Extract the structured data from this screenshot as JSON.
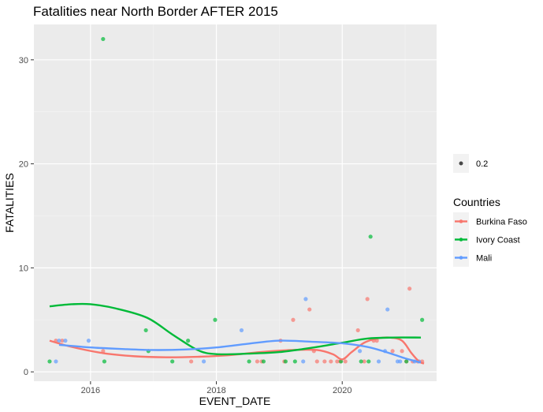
{
  "chart_data": {
    "type": "scatter",
    "title": "Fatalities near North Border AFTER 2015",
    "xlabel": "EVENT_DATE",
    "ylabel": "FATALITIES",
    "xlim": [
      2015.1,
      2021.5
    ],
    "ylim": [
      -0.9,
      33.4
    ],
    "x_ticks": [
      2016,
      2018,
      2020
    ],
    "y_ticks": [
      0,
      10,
      20,
      30
    ],
    "grid": true,
    "point_alpha": 0.2,
    "size_legend": {
      "label": "0.2"
    },
    "legend_title": "Countries",
    "legend_position": "right",
    "series": [
      {
        "name": "Burkina Faso",
        "color": "#F8766D",
        "points": [
          [
            2015.45,
            3
          ],
          [
            2015.55,
            3
          ],
          [
            2016.2,
            2
          ],
          [
            2017.6,
            1
          ],
          [
            2018.65,
            1
          ],
          [
            2018.72,
            1
          ],
          [
            2019.02,
            3
          ],
          [
            2019.08,
            1
          ],
          [
            2019.22,
            5
          ],
          [
            2019.48,
            6
          ],
          [
            2019.55,
            2
          ],
          [
            2019.6,
            1
          ],
          [
            2019.72,
            1
          ],
          [
            2019.82,
            1
          ],
          [
            2019.92,
            1
          ],
          [
            2019.97,
            1
          ],
          [
            2020.05,
            1
          ],
          [
            2020.25,
            4
          ],
          [
            2020.35,
            1
          ],
          [
            2020.4,
            7
          ],
          [
            2020.5,
            3
          ],
          [
            2020.55,
            3
          ],
          [
            2020.8,
            2
          ],
          [
            2020.95,
            2
          ],
          [
            2021.02,
            1
          ],
          [
            2021.07,
            8
          ],
          [
            2021.12,
            1
          ],
          [
            2021.2,
            1
          ],
          [
            2021.27,
            1
          ]
        ],
        "trend": [
          [
            2015.35,
            3.0
          ],
          [
            2015.7,
            2.4
          ],
          [
            2016.2,
            1.8
          ],
          [
            2016.7,
            1.5
          ],
          [
            2017.2,
            1.4
          ],
          [
            2017.7,
            1.45
          ],
          [
            2018.2,
            1.6
          ],
          [
            2018.7,
            1.9
          ],
          [
            2019.2,
            2.1
          ],
          [
            2019.6,
            2.1
          ],
          [
            2019.85,
            1.7
          ],
          [
            2020.0,
            1.2
          ],
          [
            2020.15,
            1.9
          ],
          [
            2020.35,
            2.8
          ],
          [
            2020.55,
            3.2
          ],
          [
            2020.75,
            3.3
          ],
          [
            2020.95,
            3.0
          ],
          [
            2021.1,
            1.8
          ],
          [
            2021.22,
            1.0
          ],
          [
            2021.3,
            0.8
          ]
        ]
      },
      {
        "name": "Ivory Coast",
        "color": "#00BA38",
        "points": [
          [
            2015.35,
            1
          ],
          [
            2016.2,
            32
          ],
          [
            2016.22,
            1
          ],
          [
            2016.88,
            4
          ],
          [
            2016.92,
            2
          ],
          [
            2017.3,
            1
          ],
          [
            2017.55,
            3
          ],
          [
            2017.98,
            5
          ],
          [
            2018.52,
            1
          ],
          [
            2018.75,
            1
          ],
          [
            2019.1,
            1
          ],
          [
            2019.25,
            1
          ],
          [
            2019.98,
            1
          ],
          [
            2020.3,
            1
          ],
          [
            2020.42,
            1
          ],
          [
            2020.45,
            13
          ],
          [
            2021.02,
            1
          ],
          [
            2021.27,
            5
          ]
        ],
        "trend": [
          [
            2015.35,
            6.3
          ],
          [
            2015.7,
            6.5
          ],
          [
            2016.0,
            6.5
          ],
          [
            2016.4,
            6.1
          ],
          [
            2016.9,
            5.2
          ],
          [
            2017.3,
            3.6
          ],
          [
            2017.7,
            2.1
          ],
          [
            2018.0,
            1.7
          ],
          [
            2018.5,
            1.75
          ],
          [
            2019.0,
            1.9
          ],
          [
            2019.5,
            2.3
          ],
          [
            2020.0,
            2.8
          ],
          [
            2020.4,
            3.2
          ],
          [
            2020.8,
            3.3
          ],
          [
            2021.25,
            3.3
          ]
        ],
        "show_in_color_legend": true
      },
      {
        "name": "Mali",
        "color": "#619CFF",
        "points": [
          [
            2015.45,
            1
          ],
          [
            2015.5,
            3
          ],
          [
            2015.6,
            3
          ],
          [
            2015.97,
            3
          ],
          [
            2017.8,
            1
          ],
          [
            2018.4,
            4
          ],
          [
            2019.38,
            1
          ],
          [
            2019.42,
            7
          ],
          [
            2020.28,
            2
          ],
          [
            2020.58,
            1
          ],
          [
            2020.68,
            2
          ],
          [
            2020.72,
            6
          ],
          [
            2020.88,
            1
          ],
          [
            2020.92,
            1
          ],
          [
            2021.15,
            1
          ],
          [
            2021.22,
            1
          ]
        ],
        "trend": [
          [
            2015.5,
            2.6
          ],
          [
            2016.0,
            2.35
          ],
          [
            2016.5,
            2.2
          ],
          [
            2017.0,
            2.1
          ],
          [
            2017.5,
            2.15
          ],
          [
            2018.0,
            2.35
          ],
          [
            2018.5,
            2.7
          ],
          [
            2019.0,
            3.0
          ],
          [
            2019.5,
            2.9
          ],
          [
            2020.0,
            2.75
          ],
          [
            2020.4,
            2.4
          ],
          [
            2020.7,
            1.9
          ],
          [
            2021.0,
            1.3
          ],
          [
            2021.25,
            0.9
          ]
        ]
      }
    ]
  }
}
